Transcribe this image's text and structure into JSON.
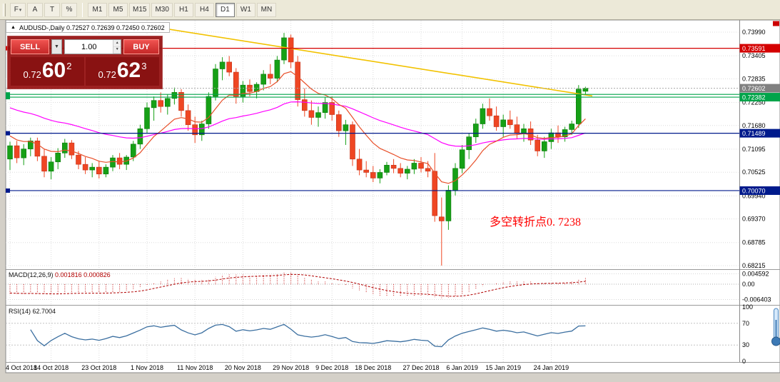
{
  "toolbar": {
    "tools": [
      "F",
      "A",
      "T",
      "%"
    ],
    "dropdown_glyph": "▾",
    "timeframes": [
      "M1",
      "M5",
      "M15",
      "M30",
      "H1",
      "H4",
      "D1",
      "W1",
      "MN"
    ],
    "selected_timeframe": "D1"
  },
  "trade_panel": {
    "sell_label": "SELL",
    "buy_label": "BUY",
    "volume": "1.00",
    "dropdown_glyph": "▼",
    "spin_up": "▲",
    "spin_down": "▼",
    "bid_prefix": "0.72",
    "bid_big": "60",
    "bid_sup": "2",
    "ask_prefix": "0.72",
    "ask_big": "62",
    "ask_sup": "3"
  },
  "chart_data": {
    "type": "candlestick",
    "symbol_icon": "▲",
    "title": "AUDUSD-,Daily 0.72527 0.72639 0.72450 0.72602",
    "y_axis_labels": [
      "0.73990",
      "0.73405",
      "0.72835",
      "0.72250",
      "0.71680",
      "0.71095",
      "0.70525",
      "0.69940",
      "0.69370",
      "0.68785",
      "0.68215"
    ],
    "ylim": [
      0.68215,
      0.7399
    ],
    "dates": [
      "4 Oct 2018",
      "14 Oct 2018",
      "23 Oct 2018",
      "1 Nov 2018",
      "11 Nov 2018",
      "20 Nov 2018",
      "29 Nov 2018",
      "9 Dec 2018",
      "18 Dec 2018",
      "27 Dec 2018",
      "6 Jan 2019",
      "15 Jan 2019",
      "24 Jan 2019"
    ],
    "date_indices": [
      0,
      6,
      13,
      20,
      27,
      34,
      41,
      47,
      53,
      60,
      66,
      72,
      79
    ],
    "candles": [
      [
        0.7085,
        0.7128,
        0.7058,
        0.7118
      ],
      [
        0.7118,
        0.713,
        0.7075,
        0.7088
      ],
      [
        0.7088,
        0.7122,
        0.707,
        0.711
      ],
      [
        0.711,
        0.7138,
        0.7092,
        0.713
      ],
      [
        0.713,
        0.7138,
        0.708,
        0.7092
      ],
      [
        0.7092,
        0.711,
        0.704,
        0.7055
      ],
      [
        0.7055,
        0.709,
        0.7035,
        0.7078
      ],
      [
        0.7078,
        0.7112,
        0.706,
        0.71
      ],
      [
        0.71,
        0.7135,
        0.7088,
        0.7125
      ],
      [
        0.7125,
        0.7132,
        0.7085,
        0.7095
      ],
      [
        0.7095,
        0.7105,
        0.706,
        0.7072
      ],
      [
        0.7072,
        0.709,
        0.7048,
        0.7058
      ],
      [
        0.7058,
        0.7075,
        0.704,
        0.7065
      ],
      [
        0.7065,
        0.708,
        0.7037,
        0.7048
      ],
      [
        0.7048,
        0.7072,
        0.704,
        0.7065
      ],
      [
        0.7065,
        0.7095,
        0.7055,
        0.7088
      ],
      [
        0.7088,
        0.71,
        0.706,
        0.7072
      ],
      [
        0.7072,
        0.7095,
        0.7058,
        0.709
      ],
      [
        0.709,
        0.713,
        0.708,
        0.7122
      ],
      [
        0.7122,
        0.717,
        0.711,
        0.716
      ],
      [
        0.716,
        0.7225,
        0.715,
        0.7212
      ],
      [
        0.7212,
        0.724,
        0.718,
        0.723
      ],
      [
        0.723,
        0.725,
        0.72,
        0.7215
      ],
      [
        0.7215,
        0.7245,
        0.7195,
        0.7235
      ],
      [
        0.7235,
        0.7262,
        0.722,
        0.725
      ],
      [
        0.725,
        0.7258,
        0.719,
        0.7205
      ],
      [
        0.7205,
        0.722,
        0.7155,
        0.717
      ],
      [
        0.717,
        0.719,
        0.7125,
        0.7145
      ],
      [
        0.7145,
        0.718,
        0.713,
        0.7172
      ],
      [
        0.7172,
        0.725,
        0.716,
        0.724
      ],
      [
        0.724,
        0.732,
        0.723,
        0.7308
      ],
      [
        0.7308,
        0.7337,
        0.728,
        0.7325
      ],
      [
        0.7325,
        0.734,
        0.729,
        0.73
      ],
      [
        0.73,
        0.731,
        0.7222,
        0.724
      ],
      [
        0.724,
        0.7278,
        0.7225,
        0.7268
      ],
      [
        0.7268,
        0.7282,
        0.724,
        0.7252
      ],
      [
        0.7252,
        0.7275,
        0.7235,
        0.727
      ],
      [
        0.727,
        0.7305,
        0.7255,
        0.7295
      ],
      [
        0.7295,
        0.732,
        0.727,
        0.7285
      ],
      [
        0.7285,
        0.734,
        0.7275,
        0.733
      ],
      [
        0.733,
        0.7397,
        0.732,
        0.7385
      ],
      [
        0.7385,
        0.7393,
        0.731,
        0.7325
      ],
      [
        0.7325,
        0.734,
        0.7215,
        0.7232
      ],
      [
        0.7232,
        0.726,
        0.719,
        0.7205
      ],
      [
        0.7205,
        0.723,
        0.717,
        0.7188
      ],
      [
        0.7188,
        0.7215,
        0.7165,
        0.72
      ],
      [
        0.72,
        0.7238,
        0.7185,
        0.7225
      ],
      [
        0.7225,
        0.724,
        0.718,
        0.7195
      ],
      [
        0.7195,
        0.7205,
        0.714,
        0.7155
      ],
      [
        0.7155,
        0.7182,
        0.712,
        0.717
      ],
      [
        0.717,
        0.7178,
        0.7068,
        0.7085
      ],
      [
        0.7085,
        0.711,
        0.7045,
        0.7058
      ],
      [
        0.7058,
        0.708,
        0.704,
        0.7052
      ],
      [
        0.7052,
        0.7068,
        0.7028,
        0.7038
      ],
      [
        0.7038,
        0.706,
        0.7025,
        0.7052
      ],
      [
        0.7052,
        0.7078,
        0.7045,
        0.707
      ],
      [
        0.707,
        0.7085,
        0.705,
        0.7062
      ],
      [
        0.7062,
        0.7075,
        0.704,
        0.705
      ],
      [
        0.705,
        0.7068,
        0.7035,
        0.706
      ],
      [
        0.706,
        0.7085,
        0.7048,
        0.7075
      ],
      [
        0.7075,
        0.709,
        0.7052,
        0.7062
      ],
      [
        0.7062,
        0.708,
        0.704,
        0.7055
      ],
      [
        0.7055,
        0.71,
        0.693,
        0.6945
      ],
      [
        0.6942,
        0.699,
        0.68215,
        0.6932
      ],
      [
        0.6932,
        0.702,
        0.691,
        0.7008
      ],
      [
        0.7008,
        0.7075,
        0.6995,
        0.7062
      ],
      [
        0.7062,
        0.712,
        0.705,
        0.7108
      ],
      [
        0.7108,
        0.715,
        0.7085,
        0.714
      ],
      [
        0.714,
        0.7185,
        0.7125,
        0.7172
      ],
      [
        0.7172,
        0.7222,
        0.716,
        0.721
      ],
      [
        0.721,
        0.7235,
        0.718,
        0.7192
      ],
      [
        0.7192,
        0.7215,
        0.7155,
        0.7165
      ],
      [
        0.7165,
        0.7195,
        0.714,
        0.7182
      ],
      [
        0.7182,
        0.7205,
        0.716,
        0.717
      ],
      [
        0.717,
        0.719,
        0.7135,
        0.7148
      ],
      [
        0.7148,
        0.7172,
        0.7128,
        0.716
      ],
      [
        0.716,
        0.7178,
        0.712,
        0.7132
      ],
      [
        0.7132,
        0.7145,
        0.7092,
        0.7105
      ],
      [
        0.7105,
        0.714,
        0.7088,
        0.7128
      ],
      [
        0.7128,
        0.716,
        0.711,
        0.715
      ],
      [
        0.715,
        0.7168,
        0.7125,
        0.714
      ],
      [
        0.714,
        0.7165,
        0.7128,
        0.7158
      ],
      [
        0.7158,
        0.718,
        0.7145,
        0.7172
      ],
      [
        0.7172,
        0.7268,
        0.7162,
        0.7258
      ],
      [
        0.72527,
        0.72639,
        0.7245,
        0.72602
      ]
    ],
    "up_color": "#16a016",
    "down_color": "#ef4623",
    "hlines": [
      {
        "price": 0.73591,
        "label": "0.73591",
        "color": "#d40000"
      },
      {
        "price": 0.7245,
        "label": "",
        "color": "#00a44a"
      },
      {
        "price": 0.72382,
        "label": "0.72382",
        "color": "#00a44a"
      },
      {
        "price": 0.71489,
        "label": "0.71489",
        "color": "#001a8c"
      },
      {
        "price": 0.7007,
        "label": "0.70070",
        "color": "#001a8c"
      }
    ],
    "current_price": {
      "price": 0.72602,
      "label": "0.72602",
      "color": "#808080"
    },
    "trendline": {
      "i1": 18,
      "p1": 0.742,
      "i2": 85,
      "p2": 0.7241,
      "color": "#f2c200"
    },
    "ma_fast": {
      "period": 10,
      "color": "#e8502a"
    },
    "ma_slow": {
      "period": 40,
      "color": "#ff00ff"
    },
    "annotation": {
      "text": "多空转折点0. 7238",
      "color": "#ff0000"
    },
    "macd": {
      "name": "MACD(12,26,9)",
      "value1": "0.001816",
      "value2": "0.000826",
      "axis_labels": [
        "0.004592",
        "0.00",
        "-0.006403"
      ]
    },
    "rsi": {
      "name": "RSI(14)",
      "value": "62.7004",
      "axis_labels": [
        "100",
        "70",
        "30",
        "0"
      ],
      "levels": [
        70,
        30
      ]
    }
  }
}
